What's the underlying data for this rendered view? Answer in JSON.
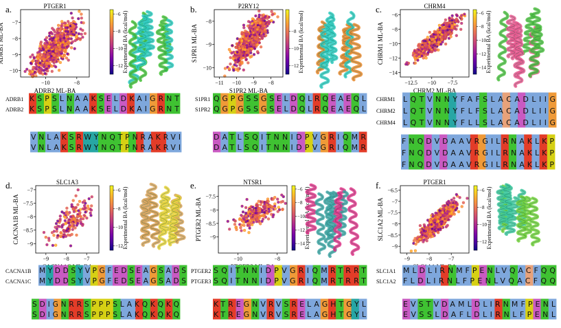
{
  "colors": {
    "res": {
      "K": "#e33c28",
      "R": "#e33c28",
      "H": "#e33c28",
      "D": "#c95ac2",
      "E": "#c95ac2",
      "S": "#3fc232",
      "T": "#3fc232",
      "N": "#3fc232",
      "Q": "#3fc232",
      "C": "#e8a27a",
      "G": "#ef9a38",
      "P": "#d6d014",
      "Y": "#27a6a4",
      "W": "#27a6a4",
      "A": "#7ea7dc",
      "V": "#7ea7dc",
      "L": "#7ea7dc",
      "I": "#7ea7dc",
      "M": "#7ea7dc",
      "F": "#7ea7dc"
    },
    "colormap": [
      "#0d0887",
      "#46039f",
      "#7201a8",
      "#9c179e",
      "#bd3786",
      "#d8576b",
      "#ed7953",
      "#fb9f3a",
      "#fdca26",
      "#f0f921"
    ]
  },
  "colorbar_label": "Experimental BA (kcal/mol)",
  "chart_data": [
    {
      "id": "a",
      "panel_label": "a.",
      "title": "PTGER1",
      "type": "scatter",
      "xlabel": "ADRB2 ML-BA",
      "ylabel": "ADRB1 ML-BA",
      "xlim": [
        -11.6,
        -7.2
      ],
      "ylim": [
        -10.4,
        -6.2
      ],
      "xticks": [
        -10,
        -8
      ],
      "yticks": [
        -10,
        -9,
        -8,
        -7
      ],
      "trend": {
        "center": [
          -9.4,
          -8.6
        ],
        "slope": 0.85,
        "sx": 0.75,
        "sy": 0.48,
        "n": 700
      },
      "colorbar": {
        "ticks": [
          -6,
          -8,
          -10,
          -12
        ],
        "range": [
          -13,
          -5.5
        ]
      },
      "structure": [
        "#2ecbc0",
        "#49c33a"
      ],
      "alignment": {
        "names": [
          "ADRB1",
          "ADRB2"
        ],
        "block1": [
          "KSPSLNAAKSELDKAIGRNT",
          "KSPSLNAAKSELDKAIGRNT"
        ],
        "block2": [
          "VNLAKSRWYNQTPNRAKRVI",
          "VNLAKSRWYNQTPNRAKRVI"
        ]
      }
    },
    {
      "id": "b",
      "panel_label": "b.",
      "title": "P2RY12",
      "type": "scatter",
      "xlabel": "S1PR2 ML-BA",
      "ylabel": "S1PR1 ML-BA",
      "xlim": [
        -11.3,
        -7.3
      ],
      "ylim": [
        -10.4,
        -7.5
      ],
      "xticks": [
        -11,
        -10,
        -9,
        -8
      ],
      "yticks": [
        -10,
        -9,
        -8
      ],
      "trend": {
        "center": [
          -9.2,
          -8.8
        ],
        "slope": 0.85,
        "sx": 0.55,
        "sy": 0.32,
        "n": 650
      },
      "colorbar": {
        "ticks": [
          -8,
          -10,
          -12
        ],
        "range": [
          -13,
          -5.5
        ]
      },
      "structure": [
        "#2ecbc0",
        "#e98a2d"
      ],
      "alignment": {
        "names": [
          "S1PR1",
          "S1PR2"
        ],
        "block1": [
          "QGPGSSGSELDQLRQEAEQL",
          "QGPGSSGSELDQLRQEAEQL"
        ],
        "block2": [
          "DATLSQITNNIDPVGRIQMR",
          "DATLSQITNNIDPVGRIQMR"
        ]
      }
    },
    {
      "id": "c",
      "panel_label": "c.",
      "title": "CHRM4",
      "type": "scatter",
      "xlabel": "CHRM2 ML-BA",
      "ylabel": "CHRM1 ML-BA",
      "xlim": [
        -13.8,
        -5.5
      ],
      "ylim": [
        -14.6,
        -5.3
      ],
      "xticks": [
        -12.5,
        -10.0,
        -7.5
      ],
      "yticks": [
        -14,
        -12,
        -10,
        -8,
        -6
      ],
      "trend": {
        "center": [
          -9.5,
          -9.4
        ],
        "slope": 0.95,
        "sx": 1.4,
        "sy": 0.55,
        "n": 650
      },
      "colorbar": {
        "ticks": [
          -6,
          -8,
          -10,
          -12,
          -14
        ],
        "range": [
          -15,
          -5.5
        ]
      },
      "structure": [
        "#e8598f",
        "#4fc141"
      ],
      "alignment": {
        "names": [
          "CHRM1",
          "CHRM2",
          "CHRM4"
        ],
        "block1": [
          "LQTVNNYFAFSLACADLIIG",
          "LQTVNNYFLFSLACADLIIG",
          "LQTVNNYFLLSLACADLIIG"
        ],
        "block2": [
          "FNQDVDAAVRGILRNAKLKP",
          "FNQDVDAAVRGILRNAKLKP",
          "FNQDVDAAVRGILRNAKLKP"
        ]
      }
    },
    {
      "id": "d",
      "panel_label": "d.",
      "title": "SLC1A3",
      "type": "scatter",
      "xlabel": "CACNA1C ML-BA",
      "ylabel": "CACNA1B ML-BA",
      "xlim": [
        -9.5,
        -6.4
      ],
      "ylim": [
        -9.35,
        -6.85
      ],
      "xticks": [
        -9,
        -8,
        -7
      ],
      "yticks": [
        -9.0,
        -8.5,
        -8.0,
        -7.5,
        -7.0
      ],
      "trend": {
        "center": [
          -7.8,
          -8.2
        ],
        "slope": 0.6,
        "sx": 0.5,
        "sy": 0.28,
        "n": 170
      },
      "colorbar": {
        "ticks": [
          -6,
          -8,
          -10,
          -12
        ],
        "range": [
          -12.5,
          -5.5
        ]
      },
      "structure": [
        "#d9a35c",
        "#e8d23a"
      ],
      "alignment": {
        "names": [
          "CACNA1B",
          "CACNA1C"
        ],
        "block1": [
          "MYDDSYVPGFEDSEAGSADS",
          "MYDDSYVPGFEDSEAGSADS"
        ],
        "block2": [
          "SDIGNRRSPPPSLAKQKQKQ",
          "SDIGNRRSPPPSLAKQKQKQ"
        ]
      }
    },
    {
      "id": "e",
      "panel_label": "e.",
      "title": "NTSR1",
      "type": "scatter",
      "xlabel": "PTGER3 ML-BA",
      "ylabel": "PTGER2 ML-BA",
      "xlim": [
        -11.0,
        -7.5
      ],
      "ylim": [
        -9.6,
        -7.1
      ],
      "xticks": [
        -10,
        -8
      ],
      "yticks": [
        -9.0,
        -8.5,
        -8.0,
        -7.5
      ],
      "trend": {
        "center": [
          -9.0,
          -8.1
        ],
        "slope": 0.35,
        "sx": 0.6,
        "sy": 0.2,
        "n": 220
      },
      "colorbar": {
        "ticks": [
          -6,
          -8,
          -10,
          -12,
          -14
        ],
        "range": [
          -15,
          -5.5
        ]
      },
      "structure": [
        "#3ea6a6",
        "#e3338a"
      ],
      "alignment": {
        "names": [
          "PTGER2",
          "PTGER3"
        ],
        "block1": [
          "SQITNNIDPVGRIQMRTRRT",
          "SQITNNIDPVGRIQMRTRRT"
        ],
        "block2": [
          "KTREGNVRVSRELAGHTGYL",
          "KTREGNVRVSRELAGHTGYL"
        ]
      }
    },
    {
      "id": "f",
      "panel_label": "f.",
      "title": "PTGER1",
      "type": "scatter",
      "xlabel": "SLC1A1 ML-BA",
      "ylabel": "SLC1A2 ML-BA",
      "xlim": [
        -9.3,
        -6.2
      ],
      "ylim": [
        -9.3,
        -6.3
      ],
      "xticks": [
        -9,
        -8,
        -7
      ],
      "yticks": [
        -9.0,
        -8.5,
        -8.0,
        -7.5,
        -7.0,
        -6.5
      ],
      "trend": {
        "center": [
          -7.6,
          -7.9
        ],
        "slope": 0.85,
        "sx": 0.4,
        "sy": 0.2,
        "n": 650
      },
      "colorbar": {
        "ticks": [
          -6,
          -8,
          -10,
          -12
        ],
        "range": [
          -13,
          -5.5
        ]
      },
      "structure": [
        "#3dc79d",
        "#72d13a"
      ],
      "alignment": {
        "names": [
          "SLC1A1",
          "SLC1A2"
        ],
        "block1": [
          "MLDLIRNMFPENLVQACFQQ",
          "FLDLIRNLFPENLVQACFQQ"
        ],
        "block2": [
          "EVSTVDAMLDLIRNMFPENL",
          "EVSSLDAFLDLIRNLFPENL"
        ]
      }
    }
  ]
}
